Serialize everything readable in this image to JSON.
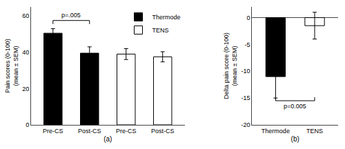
{
  "chart_data": [
    {
      "type": "bar",
      "categories": [
        "Pre-CS",
        "Post-CS",
        "Pre-CS",
        "Post-CS"
      ],
      "series": [
        {
          "name": "Thermode",
          "color": "#000000",
          "values": [
            50.5,
            39.5,
            null,
            null
          ],
          "errors": [
            2.5,
            3.5,
            null,
            null
          ]
        },
        {
          "name": "TENS",
          "color": "#ffffff",
          "values": [
            null,
            null,
            39.0,
            37.5
          ],
          "errors": [
            null,
            null,
            3.0,
            2.8
          ]
        }
      ],
      "ylabel": "Pain scores (0-100)\n(mean ± SEM)",
      "xlabel": "(a)",
      "ylim": [
        0,
        65
      ],
      "yticks": [
        0,
        20,
        40,
        60
      ],
      "grid": false,
      "legend": "upper right",
      "annotations": [
        {
          "text": "p=.005",
          "x": [
            0,
            1
          ],
          "y": 57.5
        }
      ]
    },
    {
      "type": "bar",
      "categories": [
        "Thermode",
        "TENS"
      ],
      "values": [
        -11.0,
        -1.5
      ],
      "errors": [
        4.0,
        2.5
      ],
      "colors": [
        "#000000",
        "#ffffff"
      ],
      "ylabel": "Delta pain score (0-100)\n(mean ± SEM)",
      "xlabel": "(b)",
      "ylim": [
        -20,
        2
      ],
      "yticks": [
        0,
        -5,
        -10,
        -15,
        -20
      ],
      "grid": false,
      "annotations": [
        {
          "text": "p=0.005",
          "x": [
            0,
            1
          ],
          "y": -15.5
        }
      ]
    }
  ]
}
